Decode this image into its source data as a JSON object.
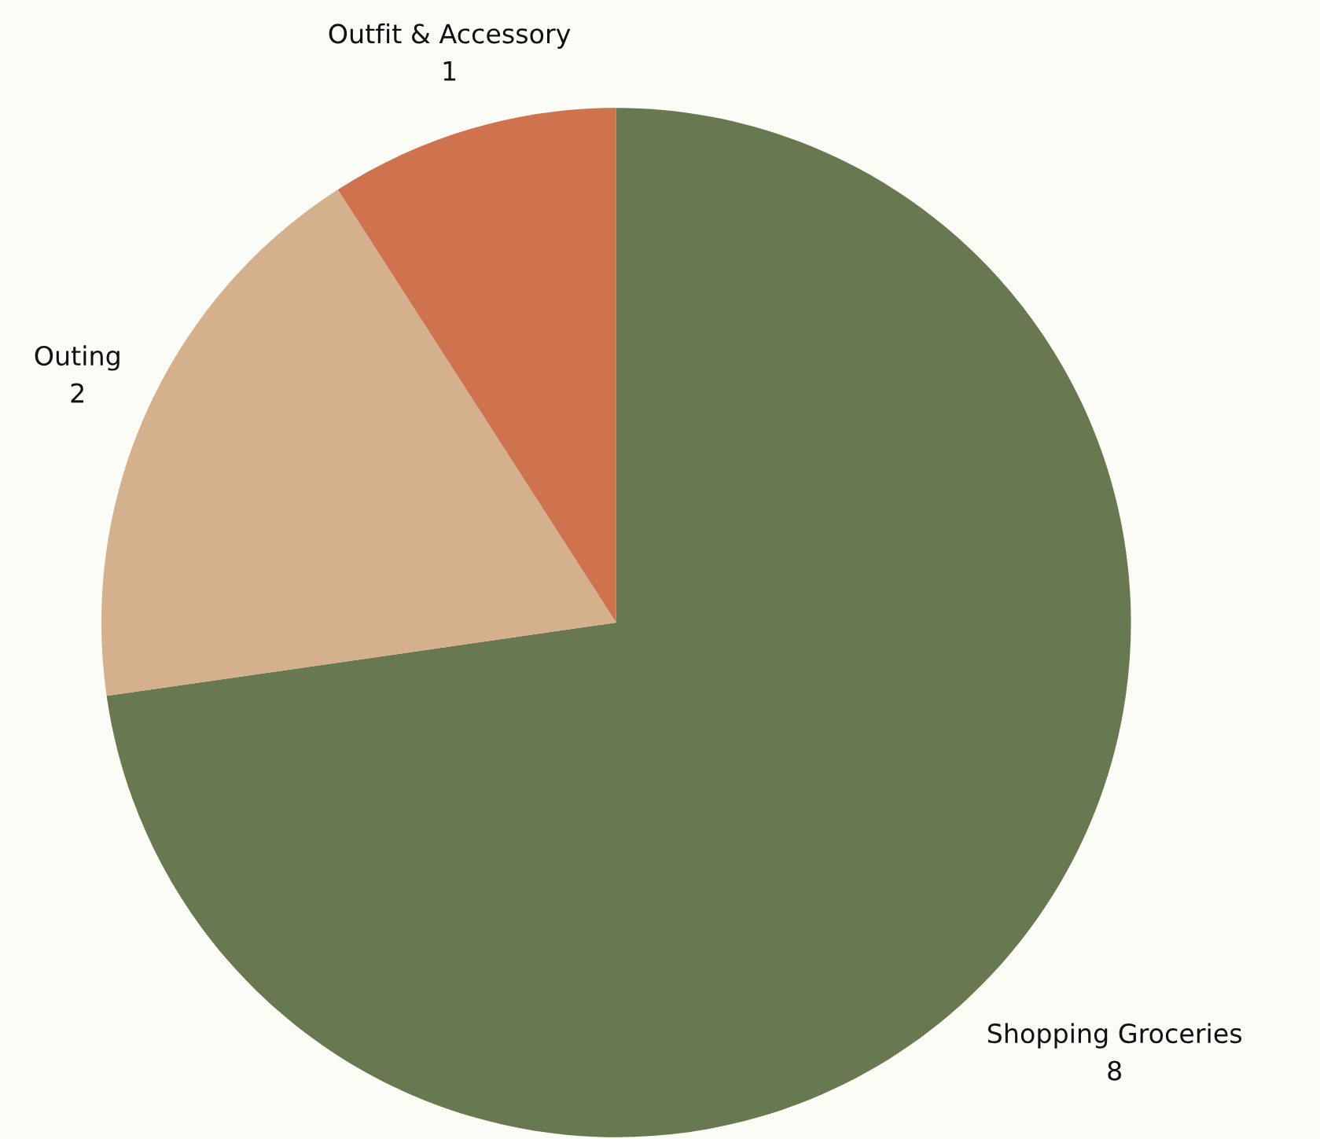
{
  "chart_data": {
    "type": "pie",
    "categories": [
      "Shopping Groceries",
      "Outing",
      "Outfit & Accessory"
    ],
    "values": [
      8,
      2,
      1
    ],
    "colors": [
      "#687851",
      "#d4b08c",
      "#cf724e"
    ],
    "data_labels": true
  }
}
